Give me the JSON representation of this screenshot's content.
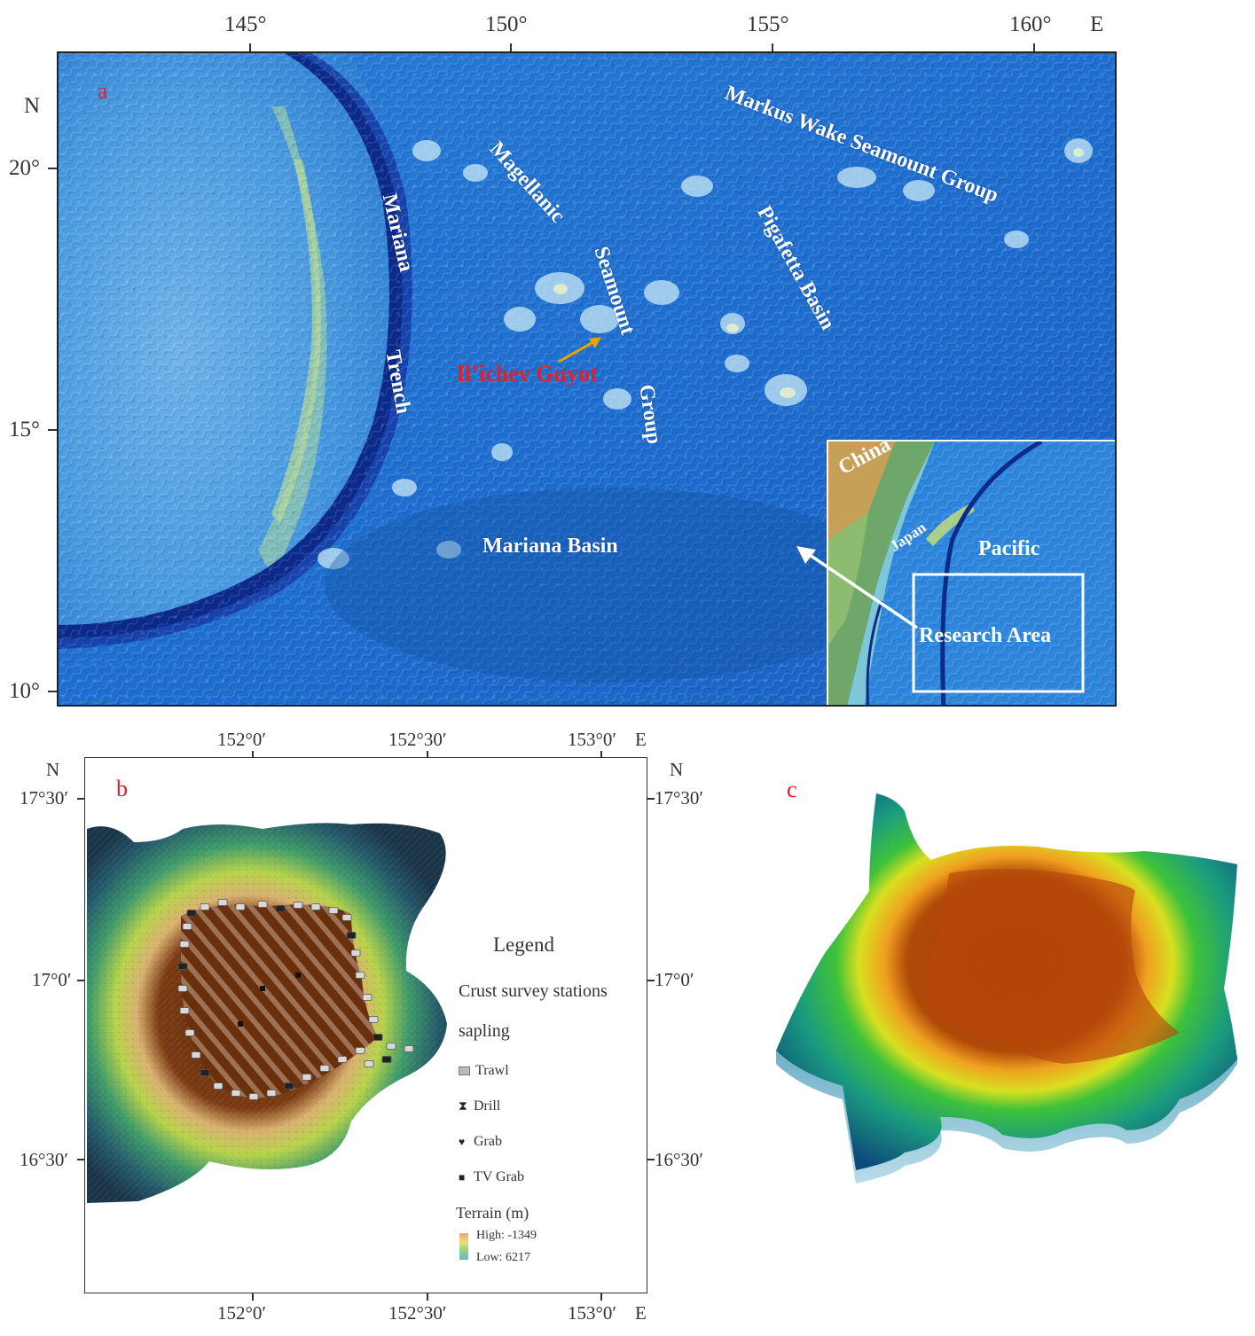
{
  "panel_a": {
    "letter": "a",
    "lon_ticks": [
      "145°",
      "150°",
      "155°",
      "160°"
    ],
    "lon_unit": "E",
    "lat_ticks": [
      "20°",
      "15°",
      "10°"
    ],
    "lat_unit": "N",
    "labels": {
      "markus_wake": "Markus Wake Seamount Group",
      "magellanic": "Magellanic",
      "seamount": "Seamount",
      "group": "Group",
      "mariana": "Mariana",
      "trench": "Trench",
      "pigafetta": "Pigafetta Basin",
      "ilichev": "Il’ichev Guyot",
      "mariana_basin": "Mariana Basin"
    },
    "inset": {
      "china": "China",
      "japan": "Japan",
      "pacific": "Pacific",
      "research_area": "Research Area"
    },
    "colors": {
      "ilichev_label": "#e0202a",
      "arrow": "#f0a000"
    }
  },
  "panel_b": {
    "letter": "b",
    "lon_ticks": [
      "152°0′",
      "152°30′",
      "153°0′"
    ],
    "lon_unit": "E",
    "lat_ticks": [
      "17°30′",
      "17°0′",
      "16°30′"
    ],
    "lat_unit": "N",
    "legend": {
      "title": "Legend",
      "subtitle": "Crust survey stations",
      "sampling": "sapling",
      "items": [
        "Trawl",
        "Drill",
        "Grab",
        "TV Grab"
      ],
      "terrain_title": "Terrain (m)",
      "high": "High: -1349",
      "low": "Low: 6217"
    }
  },
  "panel_c": {
    "letter": "c"
  }
}
